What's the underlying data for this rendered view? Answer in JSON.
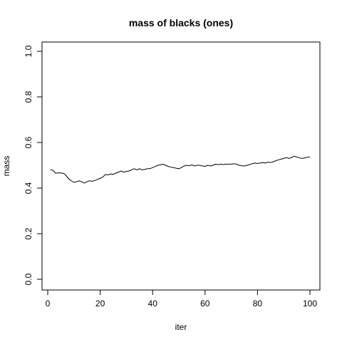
{
  "chart_data": {
    "type": "line",
    "title": "mass of blacks (ones)",
    "xlabel": "iter",
    "ylabel": "mass",
    "xlim": [
      0,
      100
    ],
    "ylim": [
      0,
      1
    ],
    "xticks": [
      0,
      20,
      40,
      60,
      80,
      100
    ],
    "yticks": [
      0.0,
      0.2,
      0.4,
      0.6,
      0.8,
      1.0
    ],
    "ytick_labels": [
      "0.0",
      "0.2",
      "0.4",
      "0.6",
      "0.8",
      "1.0"
    ],
    "grid": false,
    "series": [
      {
        "color": "#000000",
        "x": [
          1,
          2,
          3,
          4,
          5,
          6,
          7,
          8,
          9,
          10,
          11,
          12,
          13,
          14,
          15,
          16,
          17,
          18,
          19,
          20,
          21,
          22,
          23,
          24,
          25,
          26,
          27,
          28,
          29,
          30,
          31,
          32,
          33,
          34,
          35,
          36,
          37,
          38,
          39,
          40,
          41,
          42,
          43,
          44,
          45,
          46,
          47,
          48,
          49,
          50,
          51,
          52,
          53,
          54,
          55,
          56,
          57,
          58,
          59,
          60,
          61,
          62,
          63,
          64,
          65,
          66,
          67,
          68,
          69,
          70,
          71,
          72,
          73,
          74,
          75,
          76,
          77,
          78,
          79,
          80,
          81,
          82,
          83,
          84,
          85,
          86,
          87,
          88,
          89,
          90,
          91,
          92,
          93,
          94,
          95,
          96,
          97,
          98,
          99,
          100
        ],
        "y": [
          0.48,
          0.478,
          0.465,
          0.467,
          0.466,
          0.465,
          0.455,
          0.44,
          0.432,
          0.425,
          0.428,
          0.432,
          0.428,
          0.422,
          0.428,
          0.432,
          0.43,
          0.433,
          0.438,
          0.443,
          0.448,
          0.46,
          0.458,
          0.462,
          0.46,
          0.466,
          0.47,
          0.475,
          0.47,
          0.473,
          0.475,
          0.48,
          0.485,
          0.48,
          0.485,
          0.48,
          0.482,
          0.485,
          0.485,
          0.49,
          0.495,
          0.5,
          0.502,
          0.505,
          0.5,
          0.495,
          0.492,
          0.49,
          0.487,
          0.485,
          0.49,
          0.497,
          0.5,
          0.498,
          0.502,
          0.497,
          0.5,
          0.5,
          0.497,
          0.495,
          0.5,
          0.497,
          0.5,
          0.505,
          0.503,
          0.505,
          0.503,
          0.505,
          0.505,
          0.505,
          0.507,
          0.505,
          0.5,
          0.498,
          0.497,
          0.5,
          0.503,
          0.507,
          0.51,
          0.508,
          0.51,
          0.512,
          0.51,
          0.514,
          0.512,
          0.516,
          0.52,
          0.524,
          0.527,
          0.53,
          0.534,
          0.53,
          0.534,
          0.54,
          0.536,
          0.533,
          0.53,
          0.532,
          0.535,
          0.537
        ]
      }
    ]
  }
}
